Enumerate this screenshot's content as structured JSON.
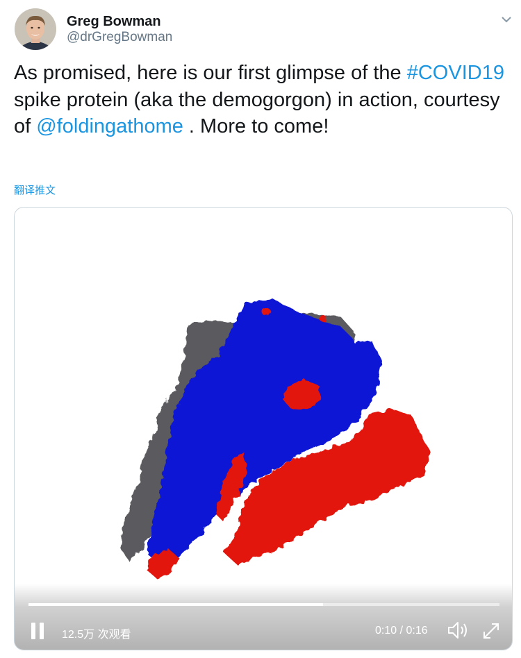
{
  "user": {
    "name": "Greg Bowman",
    "handle": "@drGregBowman"
  },
  "tweet": {
    "text_1": "As promised, here is our first glimpse of the ",
    "hashtag": "#COVID19",
    "text_2": " spike protein (aka the demogorgon) in action, courtesy of ",
    "mention": "@foldingathome",
    "text_3": " . More to come!"
  },
  "translate_label": "翻译推文",
  "video": {
    "views": "12.5万 次观看",
    "time": "0:10 / 0:16",
    "progress": 0.625
  },
  "colors": {
    "link": "#1b95e0",
    "protein_blue": "#0a14d4",
    "protein_red": "#e3140a",
    "protein_gray": "#5a5a5e"
  },
  "icons": [
    "avatar",
    "chevron-down-icon",
    "pause-icon",
    "volume-icon",
    "fullscreen-icon"
  ]
}
